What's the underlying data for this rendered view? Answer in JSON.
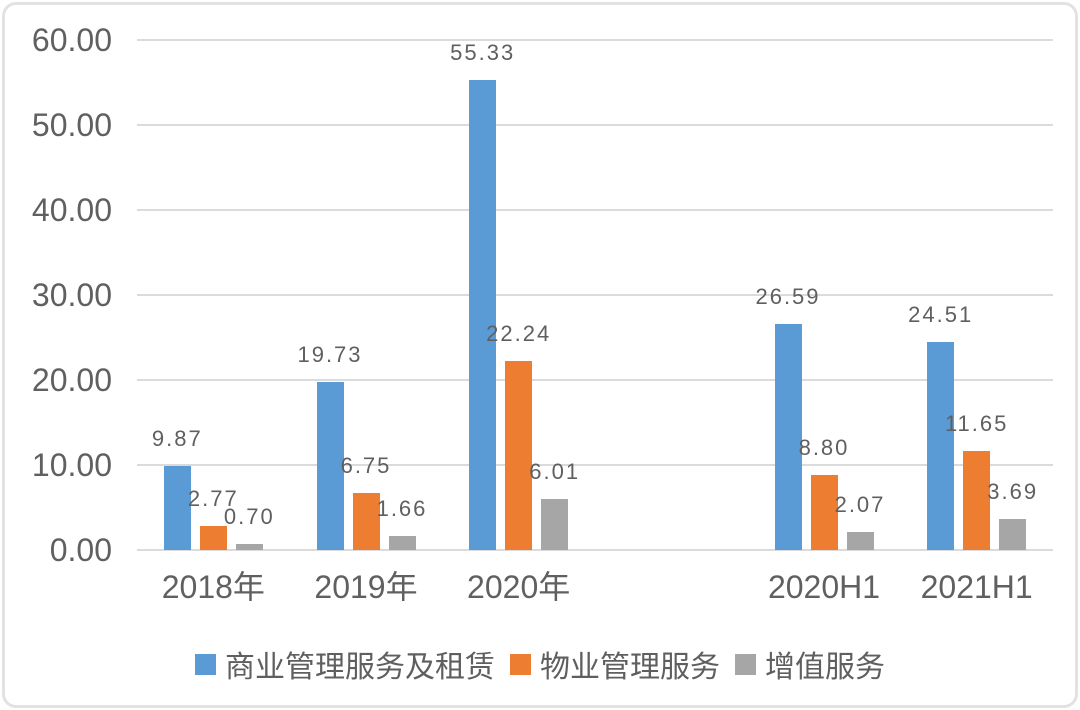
{
  "chart_data": {
    "type": "bar",
    "title": "",
    "xlabel": "",
    "ylabel": "",
    "categories": [
      "2018年",
      "2019年",
      "2020年",
      "2020H1",
      "2021H1"
    ],
    "series": [
      {
        "name": "商业管理服务及租赁",
        "color": "#5B9BD5",
        "values": [
          9.87,
          19.73,
          55.33,
          26.59,
          24.51
        ],
        "labels": [
          "9.87",
          "19.73",
          "55.33",
          "26.59",
          "24.51"
        ]
      },
      {
        "name": "物业管理服务",
        "color": "#ED7D31",
        "values": [
          2.77,
          6.75,
          22.24,
          8.8,
          11.65
        ],
        "labels": [
          "2.77",
          "6.75",
          "22.24",
          "8.80",
          "11.65"
        ]
      },
      {
        "name": "增值服务",
        "color": "#A6A6A6",
        "values": [
          0.7,
          1.66,
          6.01,
          2.07,
          3.69
        ],
        "labels": [
          "0.70",
          "1.66",
          "6.01",
          "2.07",
          "3.69"
        ]
      }
    ],
    "y_axis": {
      "min": 0,
      "max": 60,
      "tick_interval": 10,
      "tick_labels": [
        "0.00",
        "10.00",
        "20.00",
        "30.00",
        "40.00",
        "50.00",
        "60.00"
      ]
    },
    "layout": {
      "slot_count": 6,
      "category_slots": [
        0,
        1,
        2,
        4,
        5
      ],
      "grid": true,
      "legend_position": "bottom"
    },
    "colors": {
      "text": "#606060",
      "gridline": "#DBDBDB"
    }
  }
}
